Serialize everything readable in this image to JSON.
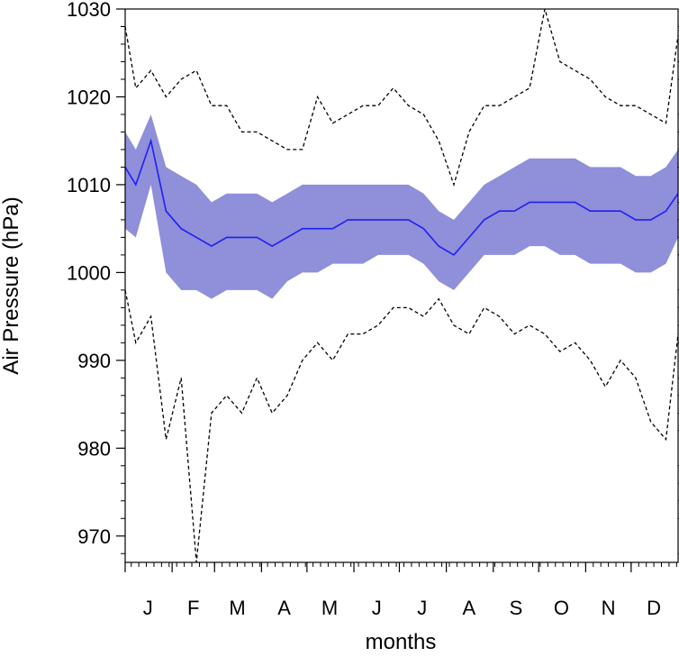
{
  "chart_data": {
    "type": "line",
    "title": "",
    "xlabel": "months",
    "ylabel": "Air Pressure (hPa)",
    "xlim": [
      1,
      366
    ],
    "ylim": [
      967,
      1030
    ],
    "yticks": [
      970,
      980,
      990,
      1000,
      1010,
      1020,
      1030
    ],
    "month_labels": [
      "J",
      "F",
      "M",
      "A",
      "M",
      "J",
      "J",
      "A",
      "S",
      "O",
      "N",
      "D"
    ],
    "month_label_days": [
      16,
      46,
      75,
      106,
      136,
      167,
      197,
      228,
      259,
      289,
      320,
      350
    ],
    "month_start_days": [
      1,
      32,
      60,
      91,
      121,
      152,
      182,
      213,
      244,
      274,
      305,
      335
    ],
    "series": [
      {
        "values": [
          [
            1,
            1012
          ],
          [
            8,
            1010
          ],
          [
            18,
            1015
          ],
          [
            28,
            1007
          ],
          [
            38,
            1005
          ],
          [
            48,
            1004
          ],
          [
            58,
            1003
          ],
          [
            68,
            1004
          ],
          [
            78,
            1004
          ],
          [
            88,
            1004
          ],
          [
            98,
            1003
          ],
          [
            108,
            1004
          ],
          [
            118,
            1005
          ],
          [
            128,
            1005
          ],
          [
            138,
            1005
          ],
          [
            148,
            1006
          ],
          [
            158,
            1006
          ],
          [
            168,
            1006
          ],
          [
            178,
            1006
          ],
          [
            188,
            1006
          ],
          [
            198,
            1005
          ],
          [
            208,
            1003
          ],
          [
            218,
            1002
          ],
          [
            228,
            1004
          ],
          [
            238,
            1006
          ],
          [
            248,
            1007
          ],
          [
            258,
            1007
          ],
          [
            268,
            1008
          ],
          [
            278,
            1008
          ],
          [
            288,
            1008
          ],
          [
            298,
            1008
          ],
          [
            308,
            1007
          ],
          [
            318,
            1007
          ],
          [
            328,
            1007
          ],
          [
            338,
            1006
          ],
          [
            348,
            1006
          ],
          [
            358,
            1007
          ],
          [
            366,
            1009
          ]
        ]
      },
      {
        "values": [
          [
            1,
            1016
          ],
          [
            8,
            1014
          ],
          [
            18,
            1018
          ],
          [
            28,
            1012
          ],
          [
            38,
            1011
          ],
          [
            48,
            1010
          ],
          [
            58,
            1008
          ],
          [
            68,
            1009
          ],
          [
            78,
            1009
          ],
          [
            88,
            1009
          ],
          [
            98,
            1008
          ],
          [
            108,
            1009
          ],
          [
            118,
            1010
          ],
          [
            128,
            1010
          ],
          [
            138,
            1010
          ],
          [
            148,
            1010
          ],
          [
            158,
            1010
          ],
          [
            168,
            1010
          ],
          [
            178,
            1010
          ],
          [
            188,
            1010
          ],
          [
            198,
            1009
          ],
          [
            208,
            1007
          ],
          [
            218,
            1006
          ],
          [
            228,
            1008
          ],
          [
            238,
            1010
          ],
          [
            248,
            1011
          ],
          [
            258,
            1012
          ],
          [
            268,
            1013
          ],
          [
            278,
            1013
          ],
          [
            288,
            1013
          ],
          [
            298,
            1013
          ],
          [
            308,
            1012
          ],
          [
            318,
            1012
          ],
          [
            328,
            1012
          ],
          [
            338,
            1011
          ],
          [
            348,
            1011
          ],
          [
            358,
            1012
          ],
          [
            366,
            1014
          ]
        ]
      },
      {
        "values": [
          [
            1,
            1005
          ],
          [
            8,
            1004
          ],
          [
            18,
            1010
          ],
          [
            28,
            1000
          ],
          [
            38,
            998
          ],
          [
            48,
            998
          ],
          [
            58,
            997
          ],
          [
            68,
            998
          ],
          [
            78,
            998
          ],
          [
            88,
            998
          ],
          [
            98,
            997
          ],
          [
            108,
            999
          ],
          [
            118,
            1000
          ],
          [
            128,
            1000
          ],
          [
            138,
            1001
          ],
          [
            148,
            1001
          ],
          [
            158,
            1001
          ],
          [
            168,
            1002
          ],
          [
            178,
            1002
          ],
          [
            188,
            1002
          ],
          [
            198,
            1001
          ],
          [
            208,
            999
          ],
          [
            218,
            998
          ],
          [
            228,
            1000
          ],
          [
            238,
            1002
          ],
          [
            248,
            1002
          ],
          [
            258,
            1002
          ],
          [
            268,
            1003
          ],
          [
            278,
            1003
          ],
          [
            288,
            1002
          ],
          [
            298,
            1002
          ],
          [
            308,
            1001
          ],
          [
            318,
            1001
          ],
          [
            328,
            1001
          ],
          [
            338,
            1000
          ],
          [
            348,
            1000
          ],
          [
            358,
            1001
          ],
          [
            366,
            1004
          ]
        ]
      },
      {
        "values": [
          [
            1,
            1028
          ],
          [
            8,
            1021
          ],
          [
            18,
            1023
          ],
          [
            28,
            1020
          ],
          [
            38,
            1022
          ],
          [
            48,
            1023
          ],
          [
            58,
            1019
          ],
          [
            68,
            1019
          ],
          [
            78,
            1016
          ],
          [
            88,
            1016
          ],
          [
            98,
            1015
          ],
          [
            108,
            1014
          ],
          [
            118,
            1014
          ],
          [
            128,
            1020
          ],
          [
            138,
            1017
          ],
          [
            148,
            1018
          ],
          [
            158,
            1019
          ],
          [
            168,
            1019
          ],
          [
            178,
            1021
          ],
          [
            188,
            1019
          ],
          [
            198,
            1018
          ],
          [
            208,
            1015
          ],
          [
            218,
            1010
          ],
          [
            228,
            1016
          ],
          [
            238,
            1019
          ],
          [
            248,
            1019
          ],
          [
            258,
            1020
          ],
          [
            268,
            1021
          ],
          [
            278,
            1030
          ],
          [
            288,
            1024
          ],
          [
            298,
            1023
          ],
          [
            308,
            1022
          ],
          [
            318,
            1020
          ],
          [
            328,
            1019
          ],
          [
            338,
            1019
          ],
          [
            348,
            1018
          ],
          [
            358,
            1017
          ],
          [
            366,
            1027
          ]
        ]
      },
      {
        "values": [
          [
            1,
            998
          ],
          [
            8,
            992
          ],
          [
            18,
            995
          ],
          [
            28,
            981
          ],
          [
            38,
            988
          ],
          [
            48,
            967
          ],
          [
            58,
            984
          ],
          [
            68,
            986
          ],
          [
            78,
            984
          ],
          [
            88,
            988
          ],
          [
            98,
            984
          ],
          [
            108,
            986
          ],
          [
            118,
            990
          ],
          [
            128,
            992
          ],
          [
            138,
            990
          ],
          [
            148,
            993
          ],
          [
            158,
            993
          ],
          [
            168,
            994
          ],
          [
            178,
            996
          ],
          [
            188,
            996
          ],
          [
            198,
            995
          ],
          [
            208,
            997
          ],
          [
            218,
            994
          ],
          [
            228,
            993
          ],
          [
            238,
            996
          ],
          [
            248,
            995
          ],
          [
            258,
            993
          ],
          [
            268,
            994
          ],
          [
            278,
            993
          ],
          [
            288,
            991
          ],
          [
            298,
            992
          ],
          [
            308,
            990
          ],
          [
            318,
            987
          ],
          [
            328,
            990
          ],
          [
            338,
            988
          ],
          [
            348,
            983
          ],
          [
            358,
            981
          ],
          [
            366,
            993
          ]
        ]
      }
    ]
  },
  "colors": {
    "mean_line": "#1f1ff5",
    "band_fill": "#8f8fda",
    "extreme_lines": "#000000",
    "axes": "#000000",
    "background": "#ffffff"
  }
}
